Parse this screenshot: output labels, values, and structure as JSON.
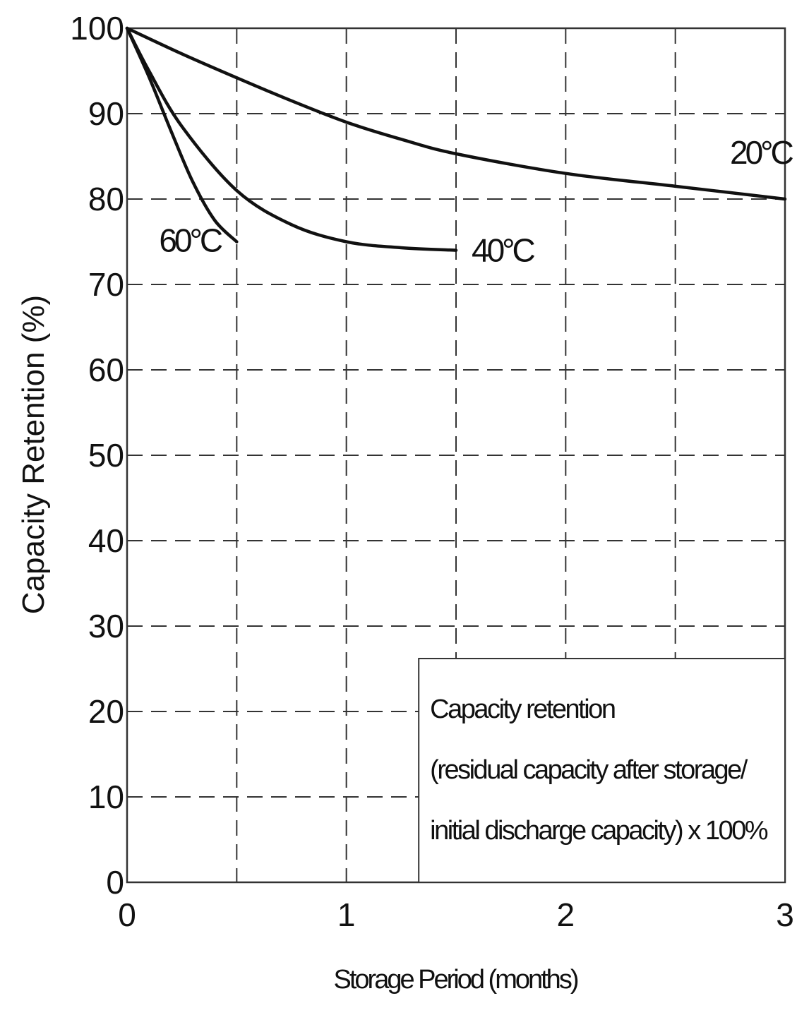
{
  "chart_data": {
    "type": "line",
    "title": "",
    "xlabel": "Storage Period (months)",
    "ylabel": "Capacity Retention (%)",
    "xlim": [
      0,
      3
    ],
    "ylim": [
      0,
      100
    ],
    "x_ticks": [
      "0",
      "1",
      "2",
      "3"
    ],
    "y_ticks": [
      "0",
      "10",
      "20",
      "30",
      "40",
      "50",
      "60",
      "70",
      "80",
      "90",
      "100"
    ],
    "grid": true,
    "grid_style": "dashed",
    "x_minor_grid": [
      0.5,
      1.5,
      2.5
    ],
    "series": [
      {
        "name": "20°C",
        "x": [
          0,
          0.25,
          0.5,
          0.75,
          1,
          1.25,
          1.5,
          2,
          2.5,
          3
        ],
        "y": [
          100,
          97,
          94.2,
          91.5,
          89,
          87,
          85.3,
          83,
          81.5,
          80
        ]
      },
      {
        "name": "40°C",
        "x": [
          0,
          0.1,
          0.25,
          0.5,
          0.75,
          1,
          1.25,
          1.5
        ],
        "y": [
          100,
          95,
          88.5,
          81,
          77,
          75,
          74.3,
          74
        ]
      },
      {
        "name": "60°C",
        "x": [
          0,
          0.1,
          0.2,
          0.3,
          0.4,
          0.5
        ],
        "y": [
          100,
          94.3,
          88,
          82,
          77.5,
          75
        ]
      }
    ],
    "note": [
      "Capacity retention",
      "(residual capacity after storage/",
      "initial discharge capacity) x 100%"
    ]
  }
}
